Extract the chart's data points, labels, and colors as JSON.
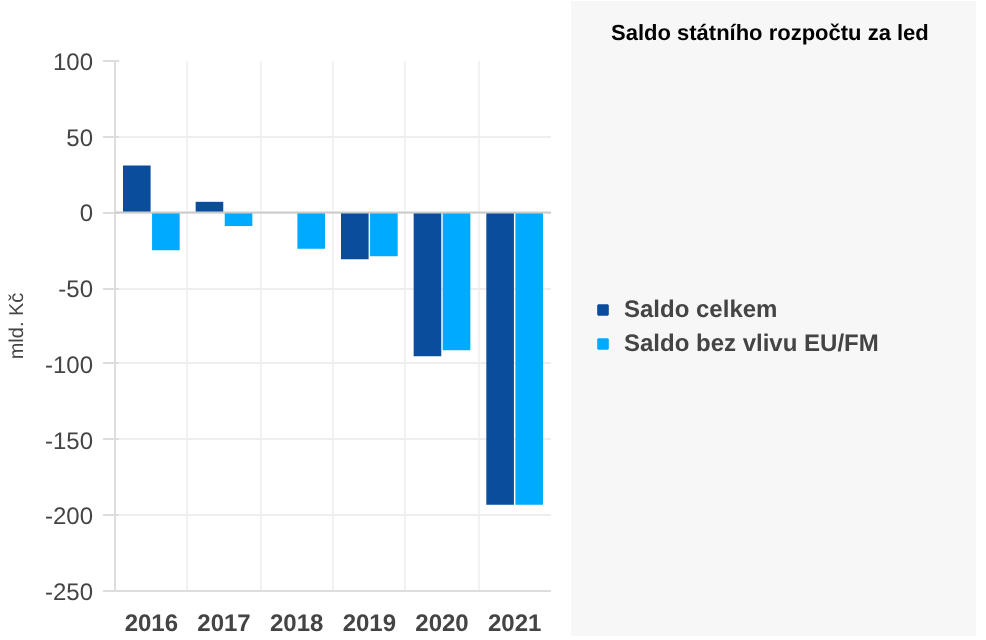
{
  "chart_data": {
    "type": "bar",
    "title": "Saldo státního rozpočtu za led",
    "ylabel": "mld. Kč",
    "categories": [
      "2016",
      "2017",
      "2018",
      "2019",
      "2020",
      "2021"
    ],
    "series": [
      {
        "name": "Saldo celkem",
        "color": "#0a4d9c",
        "values": [
          31,
          7,
          0,
          -31,
          -95,
          -193
        ]
      },
      {
        "name": "Saldo bez vlivu EU/FM",
        "color": "#00aaff",
        "values": [
          -25,
          -9,
          -24,
          -29,
          -91,
          -193
        ]
      }
    ],
    "ylim": [
      -250,
      100
    ],
    "yticks": [
      -250,
      -200,
      -150,
      -100,
      -50,
      0,
      50,
      100
    ],
    "grid": true,
    "legend": "right"
  }
}
